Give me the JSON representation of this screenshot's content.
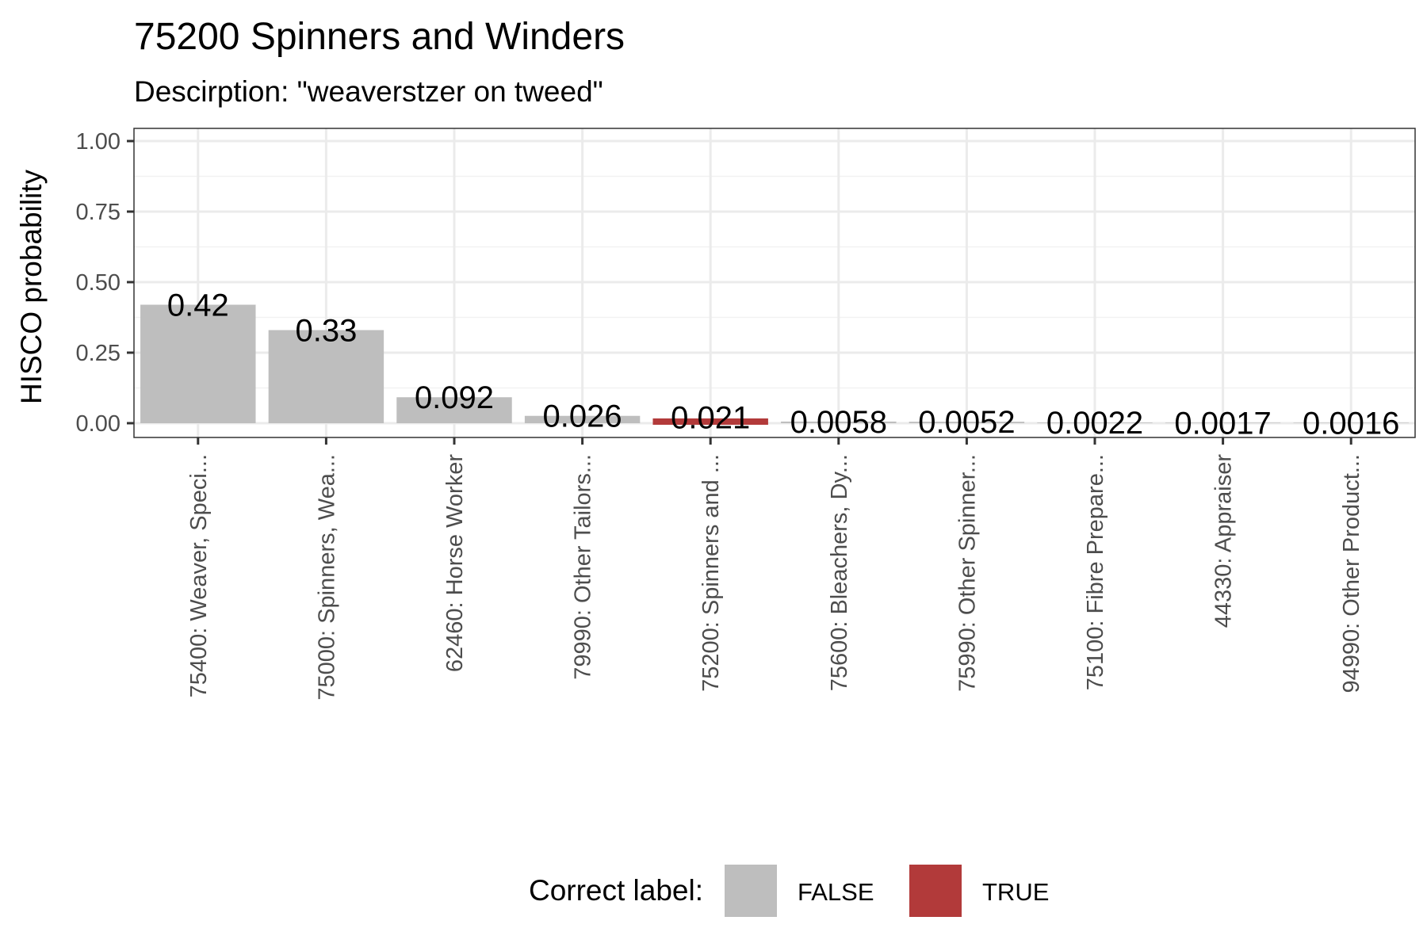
{
  "chart_data": {
    "type": "bar",
    "title": "75200 Spinners and Winders",
    "subtitle": "Descirption: \"weaverstzer on tweed\"",
    "ylabel": "HISCO probability",
    "xlabel": "",
    "ylim": [
      0,
      1
    ],
    "yticks": [
      "0.00",
      "0.25",
      "0.50",
      "0.75",
      "1.00"
    ],
    "grid": true,
    "categories": [
      "75400: Weaver, Speci...",
      "75000: Spinners, Wea...",
      "62460: Horse Worker",
      "79990: Other Tailors...",
      "75200: Spinners and ...",
      "75600: Bleachers, Dy...",
      "75990: Other Spinner...",
      "75100: Fibre Prepare...",
      "44330: Appraiser",
      "94990: Other Product..."
    ],
    "values": [
      0.42,
      0.33,
      0.092,
      0.026,
      0.021,
      0.0058,
      0.0052,
      0.0022,
      0.0017,
      0.0016
    ],
    "value_labels": [
      "0.42",
      "0.33",
      "0.092",
      "0.026",
      "0.021",
      "0.0058",
      "0.0052",
      "0.0022",
      "0.0017",
      "0.0016"
    ],
    "correct": [
      false,
      false,
      false,
      false,
      true,
      false,
      false,
      false,
      false,
      false
    ],
    "legend": {
      "title": "Correct label:",
      "placement": "bottom",
      "items": [
        {
          "label": "FALSE",
          "color": "#bebebe"
        },
        {
          "label": "TRUE",
          "color": "#b23a3a"
        }
      ]
    }
  }
}
